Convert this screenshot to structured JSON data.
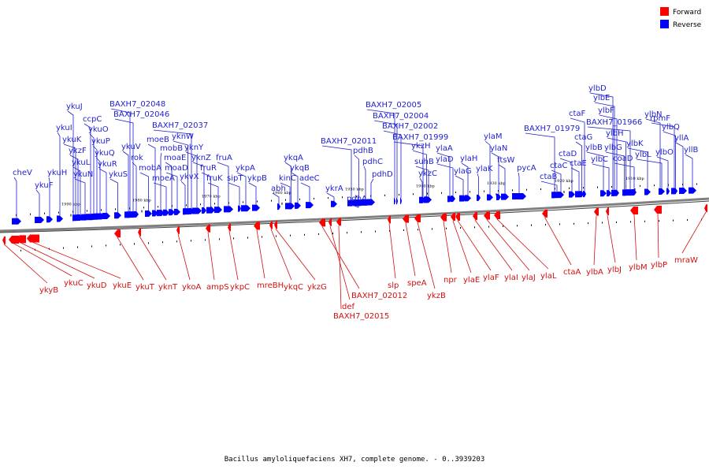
{
  "caption": "Bacillus amyloliquefaciens XH7, complete genome. - 0..3939203",
  "legend": [
    {
      "label": "Forward",
      "color": "#ff0000"
    },
    {
      "label": "Reverse",
      "color": "#0000ff"
    }
  ],
  "colors": {
    "reverse": "#0000ff",
    "forward": "#ff0000",
    "reverse_label": "#1f1fd0",
    "forward_label": "#d01010",
    "backbone": "#808080"
  },
  "scale_ticks": [
    "1990 kbp",
    "1980 kbp",
    "1970 kbp",
    "1960 kbp",
    "1950 kbp",
    "1940 kbp",
    "1930 kbp",
    "1920 kbp",
    "1910 kbp"
  ],
  "reverse_genes": [
    "cheV",
    "ykuF",
    "ykuH",
    "ykuI",
    "ykuJ",
    "ykuK",
    "ykzF",
    "ykuL",
    "ykuN",
    "ccpC",
    "ykuO",
    "ykuP",
    "ykuQ",
    "ykuR",
    "ykuS",
    "ykuV",
    "BAXH7_02048",
    "BAXH7_02046",
    "rok",
    "mobA",
    "moeB",
    "mobB",
    "moeA",
    "moaE",
    "moaD",
    "ykvX",
    "yknW",
    "BAXH7_02037",
    "yknY",
    "yknZ",
    "fruR",
    "fruK",
    "fruA",
    "sipT",
    "ykpA",
    "ykpB",
    "abh",
    "kinC",
    "ykqA",
    "ykqB",
    "adeC",
    "ykrA",
    "BAXH7_02011",
    "pdhA",
    "pdhB",
    "pdhC",
    "pdhD",
    "BAXH7_02005",
    "BAXH7_02004",
    "BAXH7_02002",
    "ykzC",
    "BAXH7_01999",
    "ykzH",
    "suhB",
    "ylaA",
    "ylaD",
    "ylaG",
    "ylaH",
    "ylaK",
    "ylaM",
    "ylaN",
    "ftsW",
    "pycA",
    "BAXH7_01979",
    "ctaB",
    "ctaC",
    "ctaD",
    "ctaE",
    "ctaG",
    "ctaF",
    "ylbB",
    "ylbC",
    "ylbD",
    "ylbE",
    "ylbF",
    "ylbG",
    "ylbH",
    "BAXH7_01966",
    "coaD",
    "ylbK",
    "ylbL",
    "ylbN",
    "ylbO",
    "ylbQ",
    "rpmF",
    "yllA",
    "yllB"
  ],
  "forward_genes": [
    "ykyB",
    "ykuC",
    "ykuD",
    "ykuE",
    "ykuT",
    "yknT",
    "ykoA",
    "ampS",
    "ykpC",
    "mreBH",
    "ykqC",
    "ykzG",
    "BAXH7_02012",
    "def",
    "BAXH7_02015",
    "slp",
    "speA",
    "ykzB",
    "npr",
    "ylaE",
    "ylaF",
    "ylaI",
    "ylaJ",
    "ylaL",
    "ctaA",
    "ylbA",
    "ylbJ",
    "ylbM",
    "ylbP",
    "mraW"
  ]
}
